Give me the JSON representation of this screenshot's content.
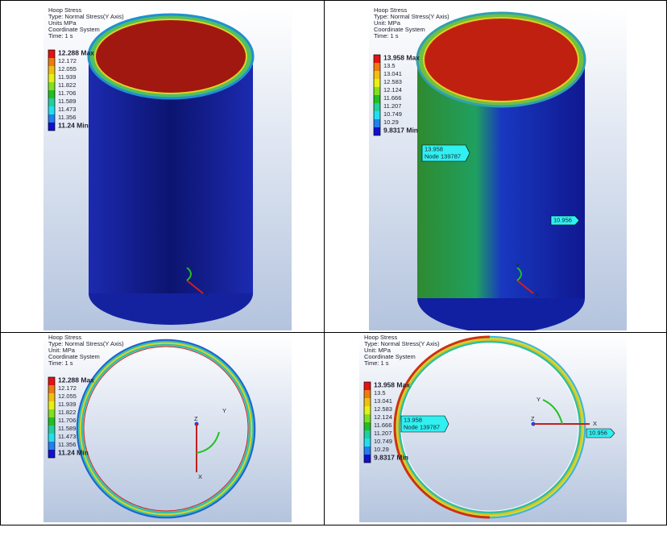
{
  "panels": [
    {
      "header": [
        "Hoop Stress",
        "Type: Normal Stress(Y Axis)",
        "Units MPa",
        "Coordinate System",
        "Time: 1 s"
      ],
      "legend": [
        "12.288 Max",
        "12.172",
        "12.055",
        "11.939",
        "11.822",
        "11.706",
        "11.589",
        "11.473",
        "11.356",
        "11.24 Min"
      ],
      "probes": [],
      "axes": [
        "Y",
        "X"
      ]
    },
    {
      "header": [
        "Hoop Stress",
        "Type: Normal Stress(Y Axis)",
        "Unit: MPa",
        "Coordinate System",
        "Time: 1 s"
      ],
      "legend": [
        "13.958 Max",
        "13.5",
        "13.041",
        "12.583",
        "12.124",
        "11.666",
        "11.207",
        "10.749",
        "10.29",
        "9.8317 Min"
      ],
      "probes": [
        [
          "13.958",
          "Node 139787"
        ],
        [
          "10.956"
        ]
      ],
      "axes": [
        "Y",
        "X"
      ]
    },
    {
      "header": [
        "Hoop Stress",
        "Type: Normal Stress(Y Axis)",
        "Unit: MPa",
        "Coordinate System",
        "Time: 1 s"
      ],
      "legend": [
        "12.288 Max",
        "12.172",
        "12.055",
        "11.939",
        "11.822",
        "11.706",
        "11.589",
        "11.473",
        "11.356",
        "11.24 Min"
      ],
      "probes": [],
      "axes": [
        "Z",
        "Y",
        "X"
      ]
    },
    {
      "header": [
        "Hoop Stress",
        "Type: Normal Stress(Y Axis)",
        "Unit: MPa",
        "Coordinate System",
        "Time: 1 s"
      ],
      "legend": [
        "13.958 Max",
        "13.5",
        "13.041",
        "12.583",
        "12.124",
        "11.666",
        "11.207",
        "10.749",
        "10.29",
        "9.8317 Min"
      ],
      "probes": [
        [
          "13.958",
          "Node 139787"
        ],
        [
          "10.956"
        ]
      ],
      "axes": [
        "Z",
        "Y",
        "X"
      ]
    }
  ]
}
